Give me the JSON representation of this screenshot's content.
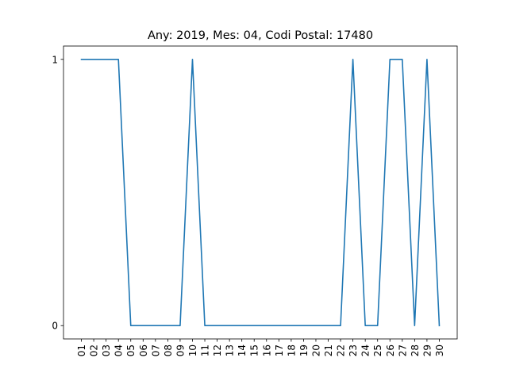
{
  "chart_data": {
    "type": "line",
    "title": "Any: 2019, Mes: 04, Codi Postal: 17480",
    "xlabel": "",
    "ylabel": "",
    "x": [
      "01",
      "02",
      "03",
      "04",
      "05",
      "06",
      "07",
      "08",
      "09",
      "10",
      "11",
      "12",
      "13",
      "14",
      "15",
      "16",
      "17",
      "18",
      "19",
      "20",
      "21",
      "22",
      "23",
      "24",
      "25",
      "26",
      "27",
      "28",
      "29",
      "30"
    ],
    "series": [
      {
        "values": [
          1,
          1,
          1,
          1,
          0,
          0,
          0,
          0,
          0,
          1,
          0,
          0,
          0,
          0,
          0,
          0,
          0,
          0,
          0,
          0,
          0,
          0,
          1,
          0,
          0,
          1,
          1,
          0,
          1,
          0
        ],
        "color": "#1f77b4"
      }
    ],
    "yticks": [
      0,
      1
    ],
    "ylim": [
      -0.05,
      1.05
    ],
    "grid": false,
    "legend": "none"
  }
}
